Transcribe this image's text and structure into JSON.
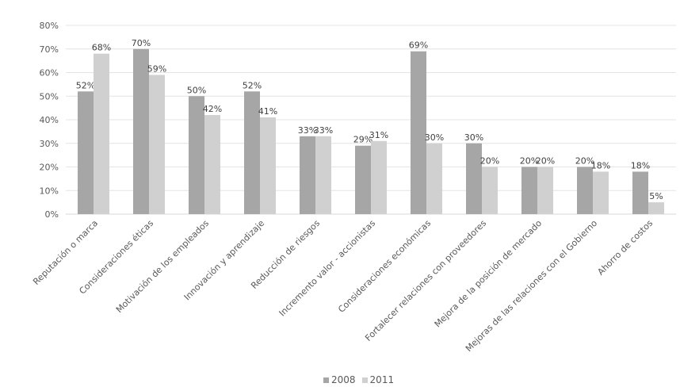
{
  "chart_data": {
    "type": "bar",
    "title": "",
    "xlabel": "",
    "ylabel": "",
    "ylim": [
      0,
      80
    ],
    "yticks": [
      "0%",
      "10%",
      "20%",
      "30%",
      "40%",
      "50%",
      "60%",
      "70%",
      "80%"
    ],
    "grid": true,
    "legend_position": "bottom",
    "categories": [
      "Reputación o marca",
      "Consideraciones éticas",
      "Motivación de los empleados",
      "Innovación y aprendizaje",
      "Reducción de riesgos",
      "Incremento valor - accionistas",
      "Consideraciones económicas",
      "Fortalecer relaciones con proveedores",
      "Mejora de la posición de mercado",
      "Mejoras de las relaciones con el Gobierno",
      "Ahorro de costos"
    ],
    "series": [
      {
        "name": "2008",
        "color": "#a6a6a6",
        "values": [
          52,
          70,
          50,
          52,
          33,
          29,
          69,
          30,
          20,
          20,
          18
        ],
        "labels": [
          "52%",
          "70%",
          "50%",
          "52%",
          "33%",
          "29%",
          "69%",
          "30%",
          "20%",
          "20%",
          "18%"
        ]
      },
      {
        "name": "2011",
        "color": "#d0d0d0",
        "values": [
          68,
          59,
          42,
          41,
          33,
          31,
          30,
          20,
          20,
          18,
          5
        ],
        "labels": [
          "68%",
          "59%",
          "42%",
          "41%",
          "33%",
          "31%",
          "30%",
          "20%",
          "20%",
          "18%",
          "5%"
        ]
      }
    ]
  }
}
